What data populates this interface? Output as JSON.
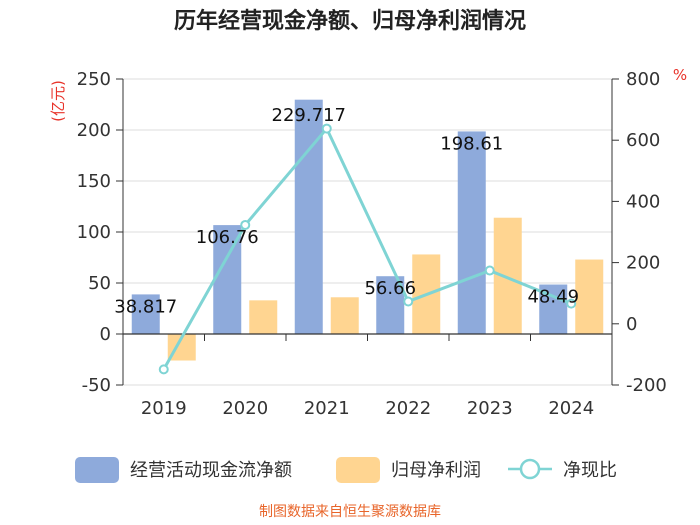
{
  "title": "历年经营现金净额、归母净利润情况",
  "source": "制图数据来自恒生聚源数据库",
  "chart_data": {
    "type": "bar",
    "categories": [
      "2019",
      "2020",
      "2021",
      "2022",
      "2023",
      "2024"
    ],
    "series": [
      {
        "name": "经营活动现金流净额",
        "kind": "bar",
        "axis": "left",
        "color": "#8eaadb",
        "values": [
          38.817,
          106.76,
          229.717,
          56.66,
          198.61,
          48.49
        ],
        "labels": [
          "38.817",
          "106.76",
          "229.717",
          "56.66",
          "198.61",
          "48.49"
        ]
      },
      {
        "name": "归母净利润",
        "kind": "bar",
        "axis": "left",
        "color": "#ffd591",
        "values": [
          -26,
          33,
          36,
          78,
          114,
          73
        ]
      },
      {
        "name": "净现比",
        "kind": "line",
        "axis": "right",
        "color": "#7fd4d4",
        "values": [
          -149,
          323,
          638,
          73,
          174,
          66
        ]
      }
    ],
    "y_left": {
      "unit": "(亿元)",
      "ylim": [
        -50,
        250
      ],
      "ticks": [
        "250",
        "200",
        "150",
        "100",
        "50",
        "0",
        "-50"
      ]
    },
    "y_right": {
      "unit": "%",
      "ylim": [
        -200,
        800
      ],
      "ticks": [
        "800",
        "600",
        "400",
        "200",
        "0",
        "-200"
      ]
    },
    "grid": true,
    "legend_position": "bottom"
  }
}
